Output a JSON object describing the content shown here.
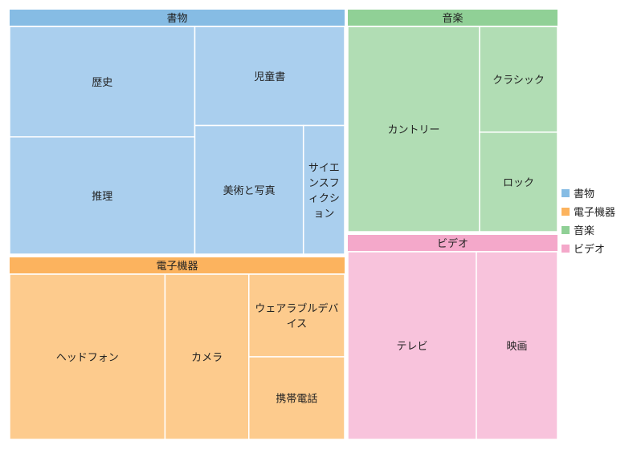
{
  "chart_data": {
    "type": "treemap",
    "groups": [
      {
        "name": "書物",
        "header_color": "#86BCE4",
        "cell_color": "#AACFEE",
        "items": [
          {
            "label": "歴史",
            "value": 20
          },
          {
            "label": "推理",
            "value": 20
          },
          {
            "label": "児童書",
            "value": 16
          },
          {
            "label": "美術と写真",
            "value": 12
          },
          {
            "label": "サイエンスフィクション",
            "value": 4.5
          }
        ]
      },
      {
        "name": "音楽",
        "header_color": "#90D096",
        "cell_color": "#B1DDB4",
        "items": [
          {
            "label": "カントリー",
            "value": 17.5
          },
          {
            "label": "クラシック",
            "value": 10
          },
          {
            "label": "ロック",
            "value": 9.5
          }
        ]
      },
      {
        "name": "電子機器",
        "header_color": "#FCB35E",
        "cell_color": "#FDCB8D",
        "items": [
          {
            "label": "ヘッドフォン",
            "value": 22.5
          },
          {
            "label": "カメラ",
            "value": 13.5
          },
          {
            "label": "ウェアラブルデバイス",
            "value": 6.5
          },
          {
            "label": "携帯電話",
            "value": 6.5
          }
        ]
      },
      {
        "name": "ビデオ",
        "header_color": "#F4A8CA",
        "cell_color": "#F8C3DC",
        "items": [
          {
            "label": "テレビ",
            "value": 19.5
          },
          {
            "label": "映画",
            "value": 12.5
          }
        ]
      }
    ],
    "legend": {
      "position": "right",
      "entries": [
        "書物",
        "電子機器",
        "音楽",
        "ビデオ"
      ]
    }
  }
}
